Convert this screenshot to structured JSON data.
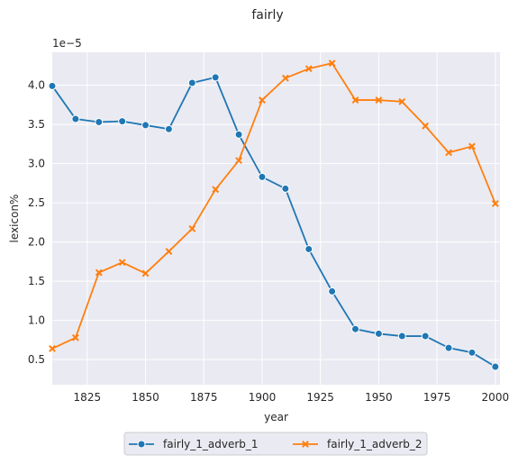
{
  "chart_data": {
    "type": "line",
    "title": "fairly",
    "xlabel": "year",
    "ylabel": "lexicon%",
    "y_offset_label": "1e−5",
    "xlim": [
      1810,
      2002
    ],
    "ylim": [
      0.18,
      4.42
    ],
    "x_ticks": [
      1825,
      1850,
      1875,
      1900,
      1925,
      1950,
      1975,
      2000
    ],
    "x_tick_labels": [
      "1825",
      "1850",
      "1875",
      "1900",
      "1925",
      "1950",
      "1975",
      "2000"
    ],
    "y_ticks": [
      0.5,
      1.0,
      1.5,
      2.0,
      2.5,
      3.0,
      3.5,
      4.0
    ],
    "y_tick_labels": [
      "0.5",
      "1.0",
      "1.5",
      "2.0",
      "2.5",
      "3.0",
      "3.5",
      "4.0"
    ],
    "x": [
      1810,
      1820,
      1830,
      1840,
      1850,
      1860,
      1870,
      1880,
      1890,
      1900,
      1910,
      1920,
      1930,
      1940,
      1950,
      1960,
      1970,
      1980,
      1990,
      2000
    ],
    "series": [
      {
        "name": "fairly_1_adverb_1",
        "color": "#1f77b4",
        "marker": "circle",
        "values": [
          3.99,
          3.57,
          3.53,
          3.54,
          3.49,
          3.44,
          4.03,
          4.1,
          3.37,
          2.83,
          2.68,
          1.91,
          1.37,
          0.89,
          0.83,
          0.8,
          0.8,
          0.65,
          0.59,
          0.41
        ]
      },
      {
        "name": "fairly_1_adverb_2",
        "color": "#ff7f0e",
        "marker": "x",
        "values": [
          0.64,
          0.78,
          1.61,
          1.74,
          1.6,
          1.88,
          2.17,
          2.67,
          3.04,
          3.81,
          4.09,
          4.21,
          4.28,
          3.81,
          3.81,
          3.79,
          3.48,
          3.14,
          3.22,
          2.49
        ]
      }
    ],
    "grid": true,
    "legend_position": "bottom-center"
  }
}
